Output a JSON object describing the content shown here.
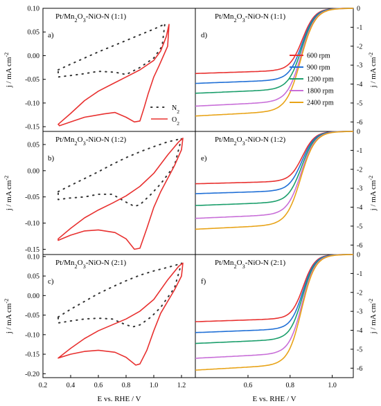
{
  "chart_data": [
    {
      "id": "a",
      "type": "line",
      "letter": "a)",
      "title": "Pt/Mn₂O₃-NiO-N (1:1)",
      "xlim": [
        0.2,
        1.3
      ],
      "ylim": [
        -0.16,
        0.1
      ],
      "yticks": [
        -0.15,
        -0.1,
        -0.05,
        0.0,
        0.05,
        0.1
      ],
      "yticklabels": [
        "-0.15",
        "-0.10",
        "-0.05",
        "0.00",
        "0.05",
        "0.10"
      ],
      "ylabel": "j / mA cm⁻²",
      "legend": [
        "N₂",
        "O₂"
      ],
      "series": [
        {
          "name": "N₂",
          "style": "dotted",
          "color": "#333333",
          "x": [
            0.31,
            0.4,
            0.5,
            0.6,
            0.7,
            0.8,
            0.9,
            1.0,
            1.06,
            1.08,
            1.06,
            1.0,
            0.9,
            0.8,
            0.72,
            0.6,
            0.5,
            0.4,
            0.31
          ],
          "y": [
            -0.03,
            -0.018,
            -0.005,
            0.008,
            0.02,
            0.032,
            0.044,
            0.056,
            0.064,
            0.068,
            0.02,
            -0.005,
            -0.025,
            -0.04,
            -0.035,
            -0.033,
            -0.038,
            -0.042,
            -0.045
          ]
        },
        {
          "name": "O₂",
          "style": "solid",
          "color": "#e8302f",
          "x": [
            0.31,
            0.4,
            0.5,
            0.6,
            0.7,
            0.8,
            0.9,
            1.0,
            1.05,
            1.09,
            1.11,
            1.1,
            1.07,
            1.04,
            1.0,
            0.96,
            0.93,
            0.9,
            0.86,
            0.8,
            0.72,
            0.64,
            0.5,
            0.4,
            0.32,
            0.31
          ],
          "y": [
            -0.145,
            -0.122,
            -0.095,
            -0.075,
            -0.06,
            -0.045,
            -0.03,
            -0.01,
            0.01,
            0.04,
            0.066,
            0.02,
            0.0,
            -0.02,
            -0.045,
            -0.08,
            -0.11,
            -0.138,
            -0.14,
            -0.13,
            -0.12,
            -0.123,
            -0.13,
            -0.14,
            -0.148,
            -0.145
          ]
        }
      ]
    },
    {
      "id": "b",
      "type": "line",
      "letter": "b)",
      "title": "Pt/Mn₂O₃-NiO-N (1:2)",
      "xlim": [
        0.2,
        1.3
      ],
      "ylim": [
        -0.16,
        0.075
      ],
      "yticks": [
        -0.15,
        -0.1,
        -0.05,
        0.0,
        0.05
      ],
      "yticklabels": [
        "-0.15",
        "-0.10",
        "-0.05",
        "0.00",
        "0.05"
      ],
      "ylabel": "j / mA cm⁻²",
      "series": [
        {
          "name": "N₂",
          "style": "dotted",
          "color": "#333333",
          "x": [
            0.31,
            0.4,
            0.5,
            0.6,
            0.7,
            0.8,
            0.9,
            1.0,
            1.1,
            1.18,
            1.2,
            1.15,
            1.05,
            0.98,
            0.9,
            0.86,
            0.8,
            0.7,
            0.6,
            0.5,
            0.4,
            0.31
          ],
          "y": [
            -0.04,
            -0.028,
            -0.015,
            -0.002,
            0.012,
            0.025,
            0.036,
            0.046,
            0.055,
            0.06,
            0.062,
            0.01,
            -0.025,
            -0.045,
            -0.065,
            -0.068,
            -0.06,
            -0.045,
            -0.045,
            -0.05,
            -0.052,
            -0.055
          ]
        },
        {
          "name": "O₂",
          "style": "solid",
          "color": "#e8302f",
          "x": [
            0.31,
            0.4,
            0.5,
            0.6,
            0.7,
            0.8,
            0.9,
            1.0,
            1.1,
            1.18,
            1.21,
            1.2,
            1.15,
            1.05,
            1.0,
            0.95,
            0.9,
            0.86,
            0.8,
            0.72,
            0.6,
            0.5,
            0.4,
            0.31
          ],
          "y": [
            -0.13,
            -0.11,
            -0.09,
            -0.075,
            -0.062,
            -0.048,
            -0.03,
            -0.005,
            0.03,
            0.055,
            0.062,
            0.04,
            0.01,
            -0.04,
            -0.07,
            -0.11,
            -0.148,
            -0.15,
            -0.13,
            -0.118,
            -0.113,
            -0.115,
            -0.123,
            -0.133
          ]
        }
      ]
    },
    {
      "id": "c",
      "type": "line",
      "letter": "c)",
      "title": "Pt/Mn₂O₃-NiO-N (2:1)",
      "xlim": [
        0.2,
        1.3
      ],
      "ylim": [
        -0.21,
        0.105
      ],
      "yticks": [
        -0.2,
        -0.15,
        -0.1,
        -0.05,
        0.0,
        0.05,
        0.1
      ],
      "yticklabels": [
        "-0.20",
        "-0.15",
        "-0.10",
        "-0.05",
        "0.00",
        "0.05",
        "0.10"
      ],
      "xticks": [
        0.2,
        0.4,
        0.6,
        0.8,
        1.0,
        1.2
      ],
      "xticklabels": [
        "0.2",
        "0.4",
        "0.6",
        "0.8",
        "1.0",
        "1.2"
      ],
      "xlabel": "E vs. RHE / V",
      "ylabel": "j / mA cm⁻²",
      "series": [
        {
          "name": "N₂",
          "style": "dotted",
          "color": "#333333",
          "x": [
            0.31,
            0.4,
            0.5,
            0.6,
            0.7,
            0.8,
            0.9,
            1.0,
            1.1,
            1.18,
            1.2,
            1.15,
            1.05,
            0.98,
            0.9,
            0.85,
            0.8,
            0.7,
            0.6,
            0.5,
            0.4,
            0.31
          ],
          "y": [
            -0.055,
            -0.035,
            -0.015,
            0.005,
            0.022,
            0.038,
            0.052,
            0.063,
            0.072,
            0.08,
            0.083,
            0.02,
            -0.03,
            -0.055,
            -0.075,
            -0.08,
            -0.075,
            -0.06,
            -0.058,
            -0.06,
            -0.065,
            -0.07
          ]
        },
        {
          "name": "O₂",
          "style": "solid",
          "color": "#e8302f",
          "x": [
            0.31,
            0.4,
            0.5,
            0.6,
            0.7,
            0.8,
            0.9,
            1.0,
            1.1,
            1.18,
            1.21,
            1.2,
            1.15,
            1.05,
            1.0,
            0.95,
            0.9,
            0.87,
            0.8,
            0.72,
            0.6,
            0.5,
            0.4,
            0.31
          ],
          "y": [
            -0.16,
            -0.135,
            -0.11,
            -0.09,
            -0.075,
            -0.06,
            -0.04,
            -0.01,
            0.04,
            0.075,
            0.083,
            0.05,
            0.015,
            -0.045,
            -0.09,
            -0.14,
            -0.175,
            -0.178,
            -0.158,
            -0.145,
            -0.14,
            -0.143,
            -0.15,
            -0.16
          ]
        }
      ]
    },
    {
      "id": "d",
      "type": "line",
      "letter": "d)",
      "title": "Pt/Mn₂O₃-NiO-N (1:1)",
      "xlim": [
        0.35,
        1.1
      ],
      "ylim": [
        -6.5,
        0
      ],
      "yticks": [
        0,
        -1,
        -2,
        -3,
        -4,
        -5,
        -6
      ],
      "yticklabels": [
        "0",
        "-1",
        "-2",
        "-3",
        "-4",
        "-5",
        "-6"
      ],
      "ylabel": "j / mA cm⁻²",
      "legend": [
        "600 rpm",
        "900 rpm",
        "1200 rpm",
        "1800 rpm",
        "2400 rpm"
      ],
      "series": [
        {
          "name": "600 rpm",
          "color": "#e8302f",
          "limit": -3.3,
          "e0": 0.858,
          "w": 0.03
        },
        {
          "name": "900 rpm",
          "color": "#1f6fd6",
          "limit": -3.8,
          "e0": 0.856,
          "w": 0.031
        },
        {
          "name": "1200 rpm",
          "color": "#1a9e6b",
          "limit": -4.3,
          "e0": 0.854,
          "w": 0.032
        },
        {
          "name": "1800 rpm",
          "color": "#c86ed8",
          "limit": -4.95,
          "e0": 0.852,
          "w": 0.033
        },
        {
          "name": "2400 rpm",
          "color": "#e8a317",
          "limit": -5.45,
          "e0": 0.85,
          "w": 0.034
        }
      ]
    },
    {
      "id": "e",
      "type": "line",
      "letter": "e)",
      "title": "Pt/Mn₂O₃-NiO-N (1:2)",
      "xlim": [
        0.35,
        1.1
      ],
      "ylim": [
        -6.5,
        0
      ],
      "yticks": [
        0,
        -1,
        -2,
        -3,
        -4,
        -5,
        -6
      ],
      "yticklabels": [
        "0",
        "-1",
        "-2",
        "-3",
        "-4",
        "-5",
        "-6"
      ],
      "ylabel": "j / mA cm⁻²",
      "series": [
        {
          "name": "600 rpm",
          "color": "#e8302f",
          "limit": -2.65,
          "e0": 0.858,
          "w": 0.03
        },
        {
          "name": "900 rpm",
          "color": "#1f6fd6",
          "limit": -3.15,
          "e0": 0.856,
          "w": 0.031
        },
        {
          "name": "1200 rpm",
          "color": "#1a9e6b",
          "limit": -3.75,
          "e0": 0.854,
          "w": 0.032
        },
        {
          "name": "1800 rpm",
          "color": "#c86ed8",
          "limit": -4.4,
          "e0": 0.852,
          "w": 0.033
        },
        {
          "name": "2400 rpm",
          "color": "#e8a317",
          "limit": -4.95,
          "e0": 0.85,
          "w": 0.034
        }
      ]
    },
    {
      "id": "f",
      "type": "line",
      "letter": "f)",
      "title": "Pt/Mn₂O₃-NiO-N (2:1)",
      "xlim": [
        0.35,
        1.1
      ],
      "ylim": [
        -6.5,
        0
      ],
      "yticks": [
        0,
        -1,
        -2,
        -3,
        -4,
        -5,
        -6
      ],
      "yticklabels": [
        "0",
        "-1",
        "-2",
        "-3",
        "-4",
        "-5",
        "-6"
      ],
      "xticks": [
        0.6,
        0.8,
        1.0
      ],
      "xticklabels": [
        "0.6",
        "0.8",
        "1.0"
      ],
      "xlabel": "E vs. RHE / V",
      "ylabel": "j / mA cm⁻²",
      "series": [
        {
          "name": "600 rpm",
          "color": "#e8302f",
          "limit": -3.4,
          "e0": 0.862,
          "w": 0.028
        },
        {
          "name": "900 rpm",
          "color": "#1f6fd6",
          "limit": -3.95,
          "e0": 0.86,
          "w": 0.029
        },
        {
          "name": "1200 rpm",
          "color": "#1a9e6b",
          "limit": -4.5,
          "e0": 0.858,
          "w": 0.03
        },
        {
          "name": "1800 rpm",
          "color": "#c86ed8",
          "limit": -5.25,
          "e0": 0.856,
          "w": 0.031
        },
        {
          "name": "2400 rpm",
          "color": "#e8a317",
          "limit": -5.85,
          "e0": 0.854,
          "w": 0.032
        }
      ]
    }
  ]
}
